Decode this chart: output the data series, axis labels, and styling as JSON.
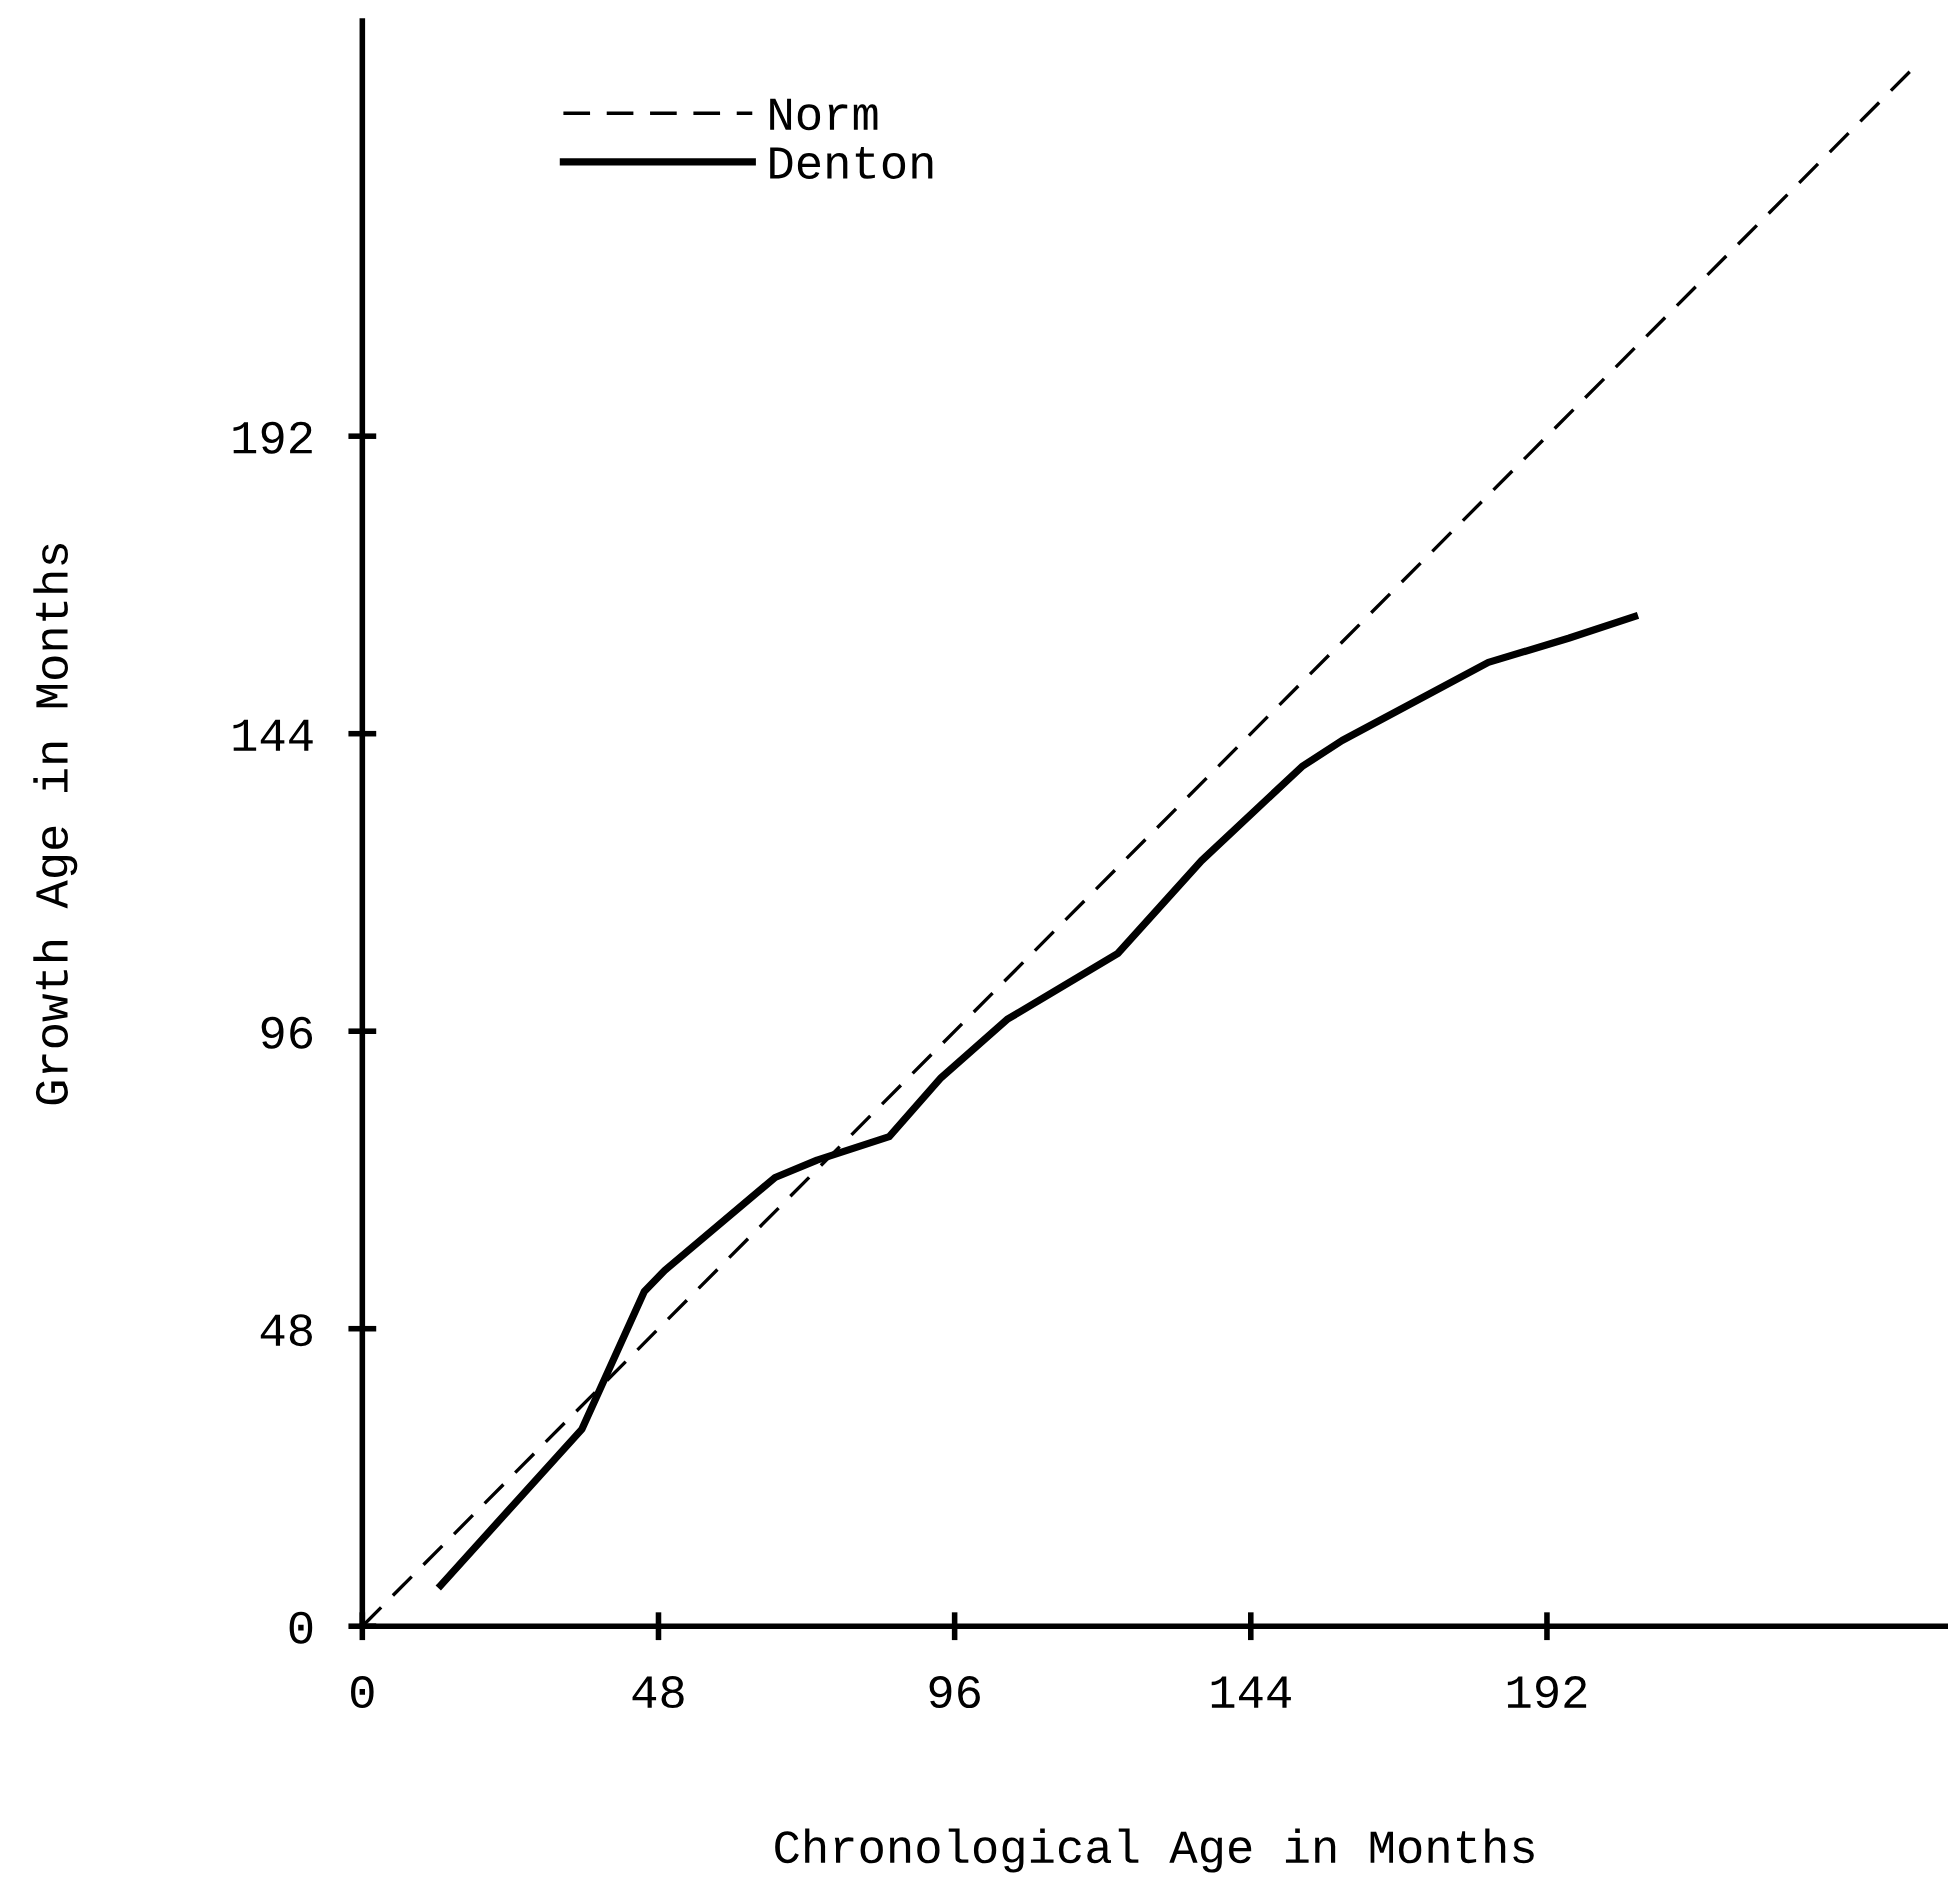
{
  "chart_data": {
    "type": "line",
    "xlabel": "Chronological Age in Months",
    "ylabel": "Growth Age in Months",
    "series": [
      {
        "name": "Norm",
        "color": "#000000",
        "line_style": "dashed",
        "x": [
          0,
          252
        ],
        "values": [
          0,
          252
        ]
      },
      {
        "name": "Denton",
        "color": "#000000",
        "line_style": "solid",
        "x": [
          12.7,
          35.6,
          45.7,
          49,
          66.9,
          73.7,
          85.4,
          93.8,
          104.5,
          122.4,
          136,
          152.3,
          158.8,
          182.5,
          195.5,
          206.2
        ],
        "values": [
          6.6,
          31.8,
          54,
          57.4,
          72.4,
          75.2,
          79,
          88.5,
          97.9,
          108.5,
          123.5,
          138.7,
          142.9,
          155.5,
          159.4,
          162.9
        ]
      }
    ],
    "xlim": [
      0,
      257
    ],
    "ylim": [
      0,
      259
    ],
    "xticks": [
      0,
      48,
      96,
      144,
      192
    ],
    "yticks": [
      0,
      48,
      96,
      144,
      192
    ],
    "grid": false,
    "legend": "top left"
  }
}
